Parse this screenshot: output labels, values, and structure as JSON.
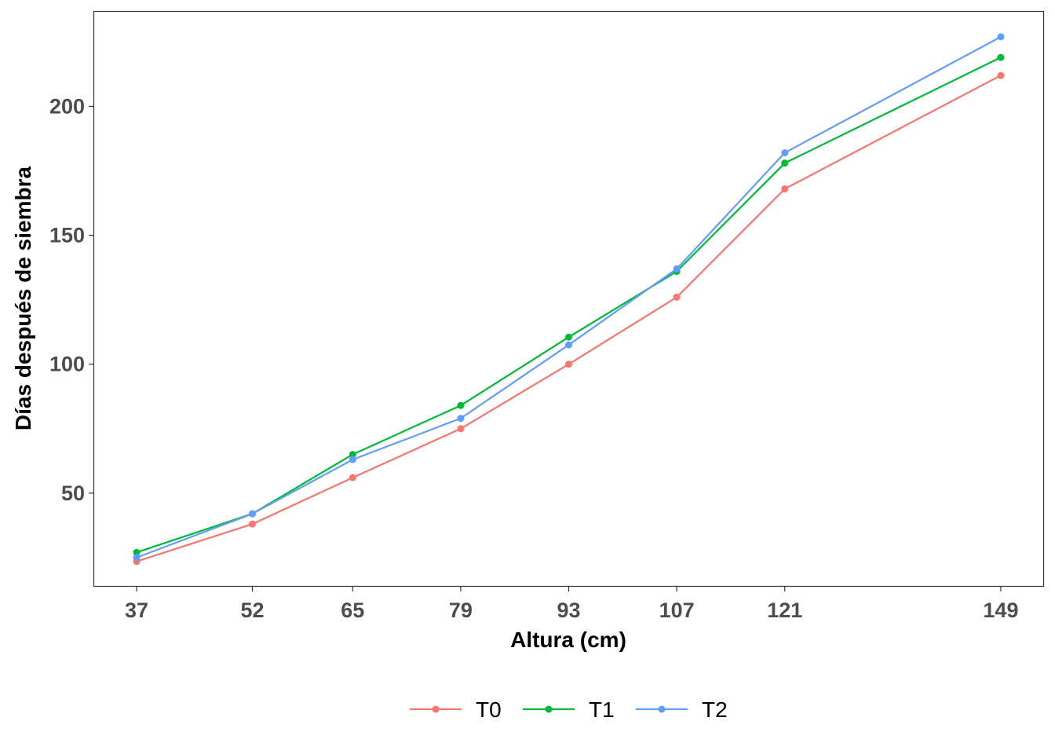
{
  "chart_data": {
    "type": "line",
    "title": "",
    "xlabel": "Altura (cm)",
    "ylabel": "Días después de siembra",
    "x": [
      37,
      52,
      65,
      79,
      93,
      107,
      121,
      149
    ],
    "x_tick_labels": [
      "37",
      "52",
      "65",
      "79",
      "93",
      "107",
      "121",
      "149"
    ],
    "y_ticks": [
      50,
      100,
      150,
      200
    ],
    "y_tick_labels": [
      "50",
      "100",
      "150",
      "200"
    ],
    "xlim": [
      31.5,
      154.5
    ],
    "ylim": [
      14,
      237
    ],
    "grid": false,
    "legend_position": "bottom",
    "series": [
      {
        "name": "T0",
        "color": "#F8766D",
        "values": [
          23.5,
          38,
          56,
          75,
          100,
          126,
          168,
          212
        ]
      },
      {
        "name": "T1",
        "color": "#00BA38",
        "values": [
          27,
          42,
          65,
          84,
          110.5,
          136,
          178,
          219
        ]
      },
      {
        "name": "T2",
        "color": "#619CFF",
        "values": [
          25,
          42,
          63,
          79,
          107.5,
          137,
          182,
          227
        ]
      }
    ]
  }
}
